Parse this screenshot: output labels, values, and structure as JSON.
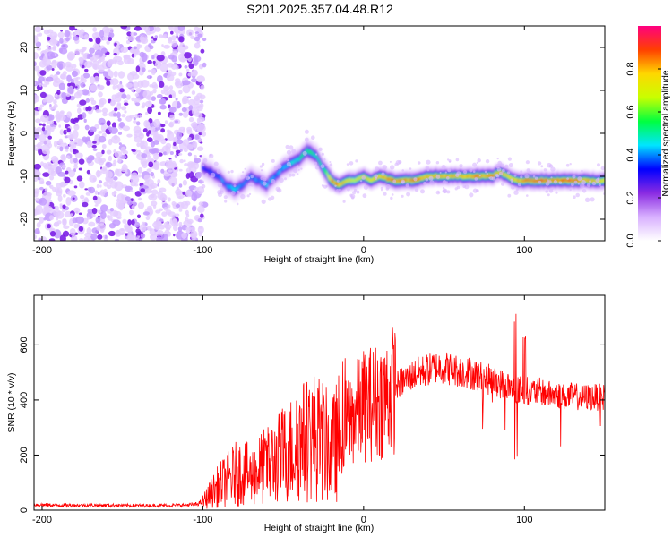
{
  "title": "S201.2025.357.04.48.R12",
  "chart_data": [
    {
      "type": "heatmap",
      "xlabel": "Height of straight line (km)",
      "ylabel": "Frequency (Hz)",
      "xlim": [
        -205,
        150
      ],
      "ylim": [
        -25,
        25
      ],
      "x_ticks": [
        -200,
        -100,
        0,
        100
      ],
      "y_ticks": [
        -20,
        -10,
        0,
        10,
        20
      ],
      "colorbar": {
        "label": "Normalized spectral amplitude",
        "range": [
          0.0,
          1.0
        ],
        "ticks": [
          "0.0",
          "0.2",
          "0.4",
          "0.6",
          "0.8"
        ],
        "tick_values": [
          0.0,
          0.2,
          0.4,
          0.6,
          0.8
        ],
        "colors": [
          "#ffffff",
          "#d8b0ff",
          "#8a2be2",
          "#0000ff",
          "#00e5ff",
          "#00ff40",
          "#c8ff00",
          "#ffd700",
          "#ff4000",
          "#ff0080"
        ]
      },
      "ridge": {
        "x": [
          -100,
          -95,
          -90,
          -85,
          -80,
          -75,
          -70,
          -65,
          -60,
          -55,
          -50,
          -45,
          -40,
          -35,
          -30,
          -25,
          -20,
          -15,
          -10,
          -5,
          0,
          5,
          10,
          20,
          30,
          40,
          50,
          60,
          70,
          80,
          85,
          90,
          95,
          100,
          110,
          120,
          130,
          140,
          150
        ],
        "y": [
          -8,
          -9,
          -10,
          -12,
          -13,
          -12,
          -10,
          -11,
          -12,
          -10,
          -8,
          -7,
          -6,
          -4,
          -5,
          -8,
          -11,
          -12,
          -11,
          -11,
          -10,
          -11,
          -10,
          -11,
          -11,
          -10,
          -10,
          -10,
          -10,
          -10,
          -9,
          -10,
          -11,
          -11,
          -11,
          -11,
          -11,
          -11,
          -11
        ],
        "amplitude": [
          0.35,
          0.35,
          0.4,
          0.4,
          0.45,
          0.4,
          0.4,
          0.4,
          0.45,
          0.4,
          0.45,
          0.45,
          0.5,
          0.55,
          0.5,
          0.5,
          0.85,
          0.85,
          0.75,
          0.7,
          0.75,
          0.8,
          0.8,
          0.85,
          0.85,
          0.8,
          0.8,
          0.8,
          0.85,
          0.85,
          0.8,
          0.75,
          0.8,
          0.85,
          0.9,
          0.85,
          0.9,
          0.8,
          0.75
        ]
      },
      "noise_region_x": [
        -205,
        -99
      ]
    },
    {
      "type": "line",
      "xlabel": "Height of straight line (km)",
      "ylabel": "SNR (10 * v/v)",
      "xlim": [
        -205,
        150
      ],
      "ylim": [
        0,
        780
      ],
      "x_ticks": [
        -200,
        -100,
        0,
        100
      ],
      "y_ticks": [
        0,
        200,
        400,
        600
      ],
      "line_color": "#ff0000",
      "series": [
        {
          "x": [
            -205,
            -190,
            -175,
            -160,
            -145,
            -130,
            -115,
            -105,
            -100,
            -95,
            -90,
            -85,
            -80,
            -75,
            -70,
            -65,
            -60,
            -55,
            -50,
            -45,
            -40,
            -35,
            -30,
            -25,
            -20,
            -15,
            -10,
            -5,
            0,
            5,
            10,
            15,
            20,
            25,
            30,
            35,
            40,
            45,
            50,
            55,
            60,
            65,
            70,
            75,
            80,
            85,
            90,
            95,
            100,
            105,
            110,
            115,
            120,
            125,
            130,
            135,
            140,
            145,
            150
          ],
          "y": [
            20,
            18,
            18,
            18,
            17,
            17,
            18,
            20,
            30,
            60,
            90,
            110,
            130,
            140,
            120,
            150,
            160,
            180,
            200,
            220,
            240,
            260,
            270,
            250,
            210,
            270,
            320,
            350,
            380,
            390,
            400,
            420,
            450,
            470,
            490,
            500,
            510,
            520,
            520,
            510,
            505,
            500,
            490,
            480,
            470,
            460,
            450,
            440,
            435,
            430,
            430,
            420,
            420,
            410,
            415,
            410,
            410,
            410,
            410
          ]
        }
      ]
    }
  ]
}
